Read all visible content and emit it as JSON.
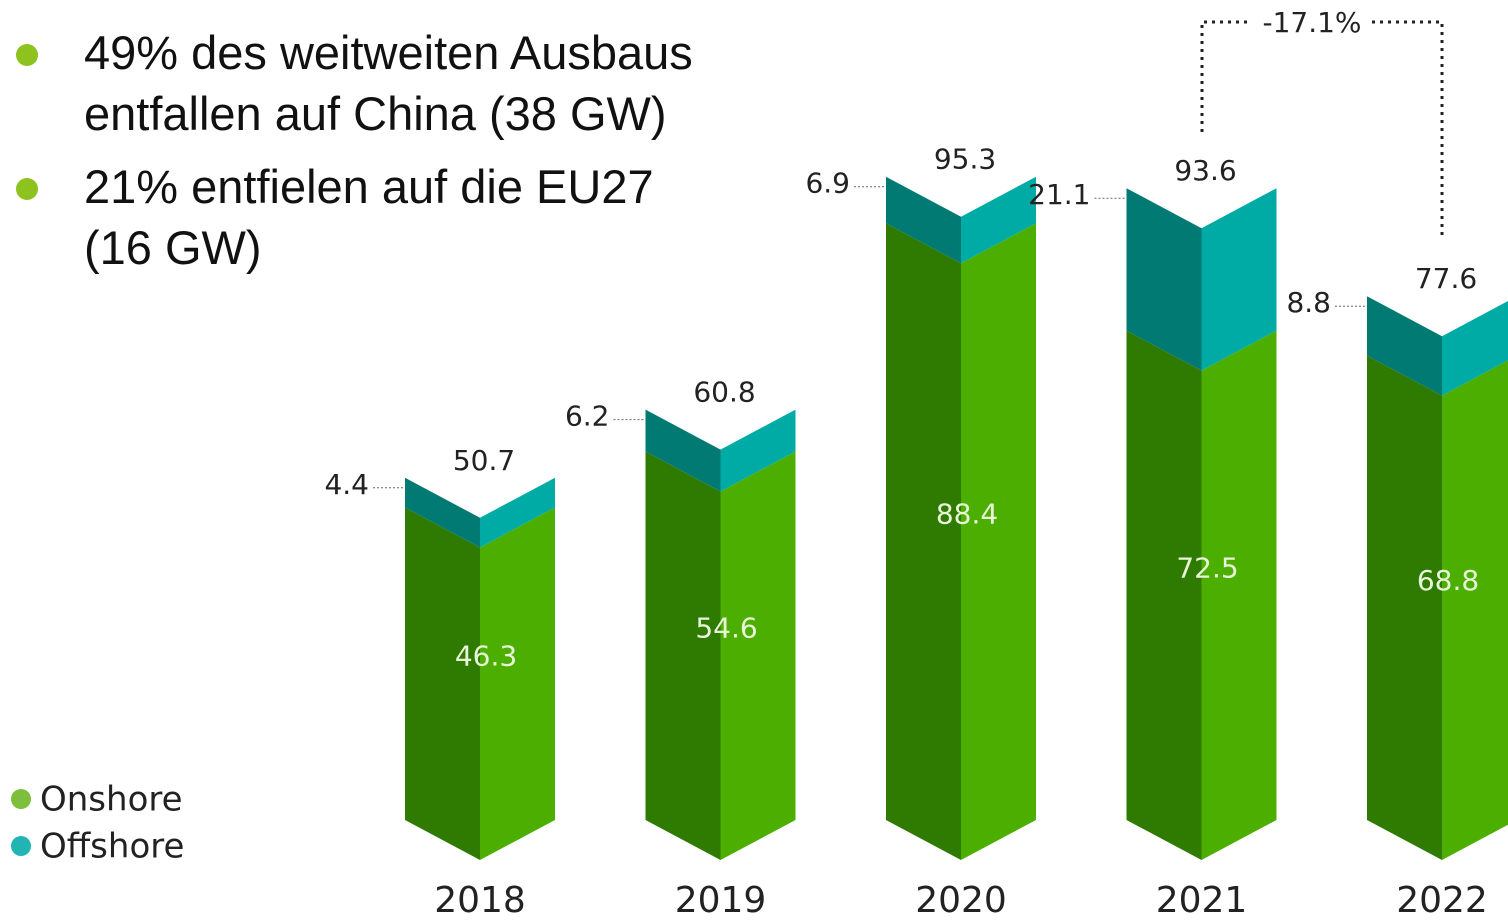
{
  "chart_data": {
    "type": "bar",
    "stacked": true,
    "bullets": [
      "49% des weitweiten Ausbaus entfallen auf China (38 GW)",
      "21% entfielen auf die EU27 (16 GW)"
    ],
    "categories": [
      "2018",
      "2019",
      "2020",
      "2021",
      "2022"
    ],
    "series": [
      {
        "name": "Onshore",
        "color": "#4caf00",
        "dark_color": "#2f7a00",
        "legend_color": "#7dbf3a",
        "values": [
          46.3,
          54.6,
          88.4,
          72.5,
          68.8
        ]
      },
      {
        "name": "Offshore",
        "color": "#00aba6",
        "dark_color": "#007a72",
        "legend_color": "#22b4b4",
        "values": [
          4.4,
          6.2,
          6.9,
          21.1,
          8.8
        ]
      }
    ],
    "totals": [
      50.7,
      60.8,
      95.3,
      93.6,
      77.6
    ],
    "annotation": "-17.1%"
  }
}
